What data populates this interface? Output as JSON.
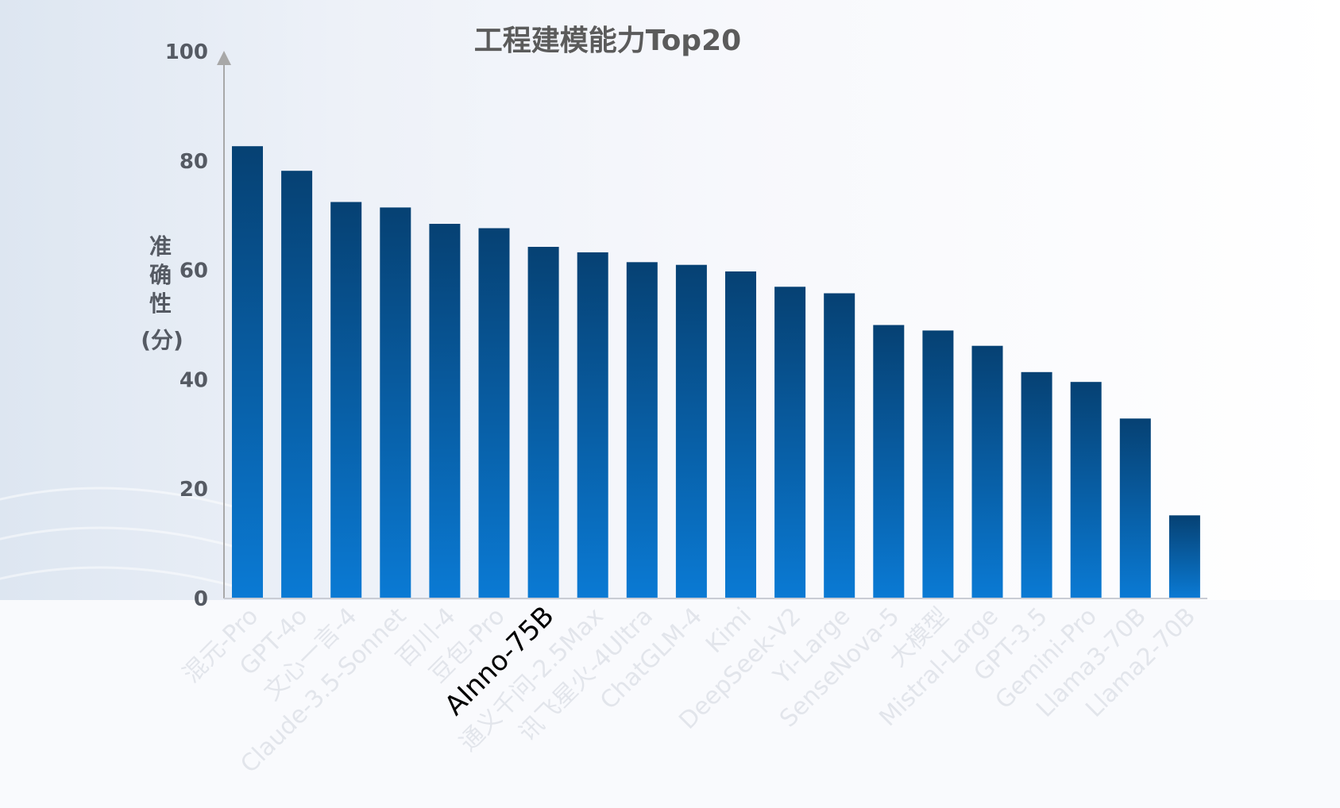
{
  "chart_data": {
    "type": "bar",
    "title": "工程建模能力Top20",
    "ylabel_chars": [
      "准",
      "确",
      "性"
    ],
    "ylabel_unit": "(分)",
    "ylim": [
      0,
      100
    ],
    "yticks": [
      "0",
      "20",
      "40",
      "60",
      "80",
      "100"
    ],
    "grid": false,
    "categories": [
      "混元-Pro",
      "GPT-4o",
      "文心一言-4",
      "Claude-3.5-Sonnet",
      "百川-4",
      "豆包-Pro",
      "AInno-75B",
      "通义千问-2.5Max",
      "讯飞星火-4Ultra",
      "ChatGLM-4",
      "Kimi",
      "DeepSeek-V2",
      "Yi-Large",
      "SenseNova-5",
      "大模型",
      "Mistral-Large",
      "GPT-3.5",
      "Gemini-Pro",
      "Llama3-70B",
      "Llama2-70B"
    ],
    "highlight_category": "AInno-75B",
    "values": [
      82.7,
      78.2,
      72.5,
      71.5,
      68.5,
      67.7,
      64.3,
      63.3,
      61.5,
      61.0,
      59.8,
      57.0,
      55.8,
      50.0,
      49.0,
      46.2,
      41.4,
      39.6,
      32.9,
      15.2
    ],
    "colors": {
      "bar_top": "#064173",
      "bar_bottom": "#0a7ad4",
      "axis": "#a8a8a8",
      "tick_text": "#555a63",
      "title_text": "#5b5b5b",
      "highlight_text": "#000000"
    }
  }
}
